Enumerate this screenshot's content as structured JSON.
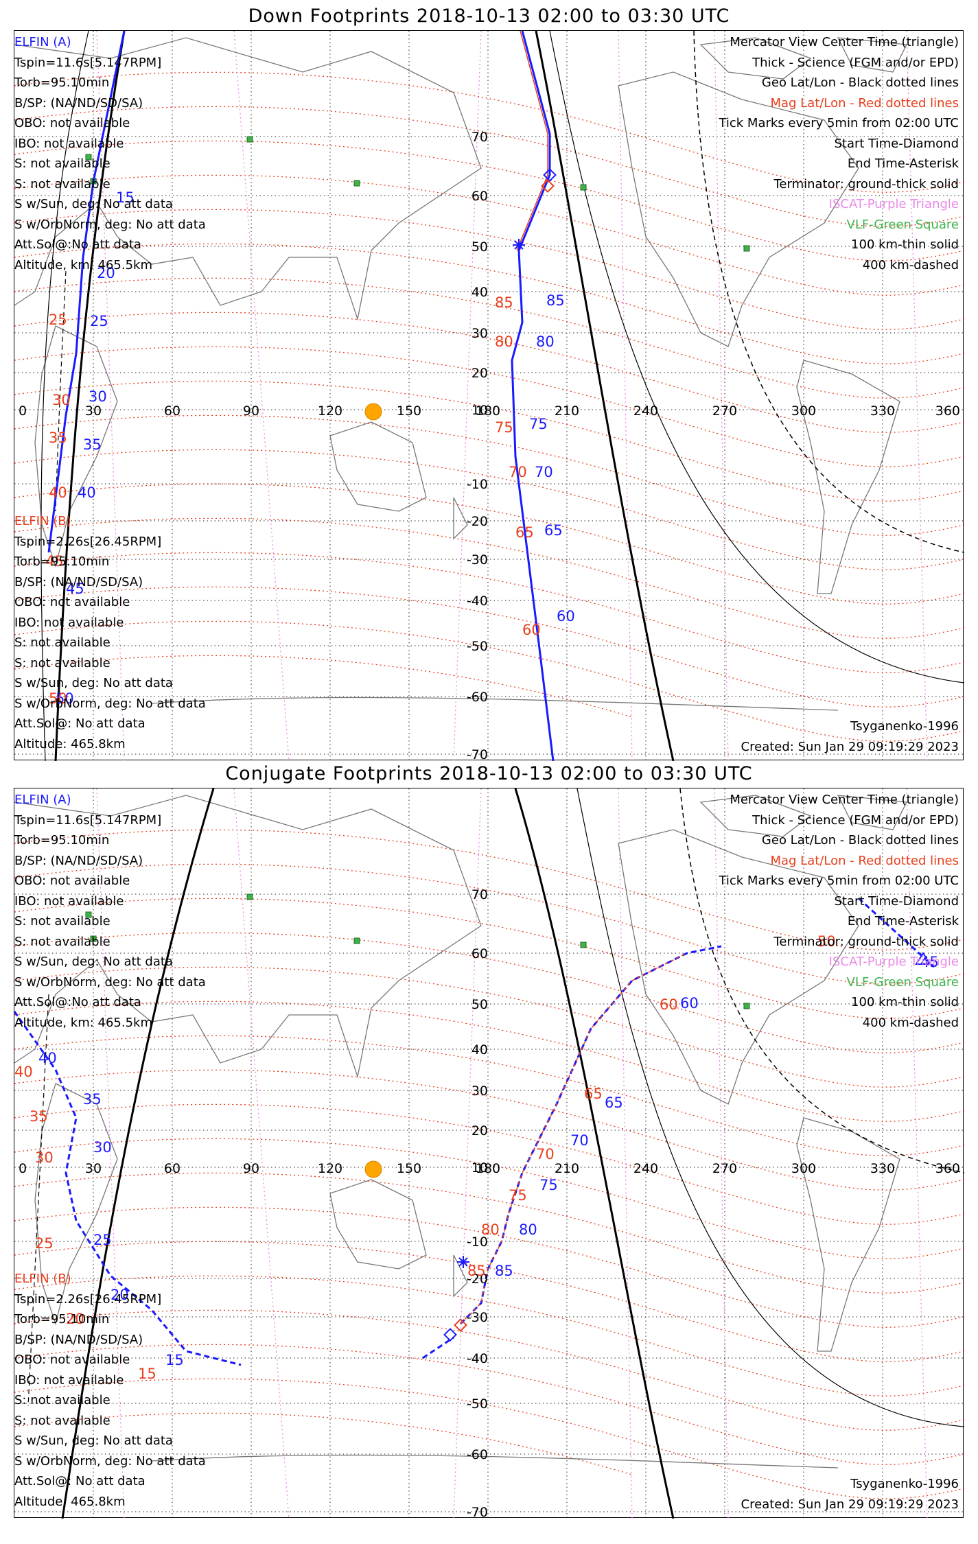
{
  "colors": {
    "science": "#1a1aff",
    "mag": "#e83e1c",
    "geo": "#000000",
    "iscat": "#e88ae8",
    "vlf": "#3fb24a",
    "sun": "#ffa500"
  },
  "panels": [
    {
      "title": "Down Footprints 2018-10-13 02:00 to 03:30 UTC",
      "elfin_a": {
        "header": "ELFIN (A)",
        "lines": [
          "Tspin=11.6s[5.147RPM]",
          "Torb=95.10min",
          "B/SP: (NA/ND/SD/SA)",
          "OBO: not available",
          "IBO: not available",
          "S: not available",
          "S: not available",
          "S w/Sun, deg: No att data",
          "S w/OrbNorm, deg: No att data",
          "Att.Sol@:No att data",
          "Altitude, km: 465.5km"
        ]
      },
      "elfin_b": {
        "header": "ELFIN (B)",
        "lines": [
          "Tspin=2.26s[26.45RPM]",
          "Torb=95.10min",
          "B/SP: (NA/ND/SD/SA)",
          "OBO: not available",
          "IBO: not available",
          "S: not available",
          "S: not available",
          "S w/Sun, deg: No att data",
          "S w/OrbNorm, deg: No att data",
          "Att.Sol@: No att data",
          "Altitude: 465.8km"
        ]
      },
      "legend": [
        {
          "text": "Mercator View Center Time (triangle)",
          "color": "black"
        },
        {
          "text": "Thick - Science (FGM and/or EPD)",
          "color": "black"
        },
        {
          "text": "Geo Lat/Lon - Black dotted lines",
          "color": "black"
        },
        {
          "text": "Mag Lat/Lon - Red dotted lines",
          "color": "red"
        },
        {
          "text": "Tick Marks every 5min from 02:00 UTC",
          "color": "black"
        },
        {
          "text": "Start Time-Diamond",
          "color": "black"
        },
        {
          "text": "End Time-Asterisk",
          "color": "black"
        },
        {
          "text": "Terminator: ground-thick solid",
          "color": "black"
        },
        {
          "text": "ISCAT-Purple Triangle",
          "color": "pink"
        },
        {
          "text": "VLF-Green Square",
          "color": "green"
        },
        {
          "text": "100 km-thin solid",
          "color": "black"
        },
        {
          "text": "400 km-dashed",
          "color": "black"
        }
      ],
      "model": "Tsyganenko-1996",
      "created": "Created: Sun Jan 29 09:19:29 2023",
      "lon_ticks": [
        "0",
        "30",
        "60",
        "90",
        "120",
        "150",
        "180",
        "210",
        "240",
        "270",
        "300",
        "330",
        "360"
      ],
      "lat_ticks": [
        "70",
        "60",
        "50",
        "40",
        "30",
        "20",
        "10",
        "-10",
        "-20",
        "-30",
        "-40",
        "-50",
        "-60",
        "-70"
      ],
      "blue_labels": [
        "15",
        "20",
        "25",
        "30",
        "35",
        "40",
        "45",
        "50",
        "85",
        "80",
        "75",
        "70",
        "65",
        "60"
      ],
      "red_labels": [
        "25",
        "30",
        "35",
        "40",
        "45",
        "50",
        "85",
        "80",
        "75",
        "70",
        "65",
        "60"
      ]
    },
    {
      "title": "Conjugate Footprints 2018-10-13 02:00 to 03:30 UTC",
      "elfin_a": {
        "header": "ELFIN (A)",
        "lines": [
          "Tspin=11.6s[5.147RPM]",
          "Torb=95.10min",
          "B/SP: (NA/ND/SD/SA)",
          "OBO: not available",
          "IBO: not available",
          "S: not available",
          "S: not available",
          "S w/Sun, deg: No att data",
          "S w/OrbNorm, deg: No att data",
          "Att.Sol@:No att data",
          "Altitude, km: 465.5km"
        ]
      },
      "elfin_b": {
        "header": "ELFIN (B)",
        "lines": [
          "Tspin=2.26s[26.45RPM]",
          "Torb=95.10min",
          "B/SP: (NA/ND/SD/SA)",
          "OBO: not available",
          "IBO: not available",
          "S: not available",
          "S: not available",
          "S w/Sun, deg: No att data",
          "S w/OrbNorm, deg: No att data",
          "Att.Sol@: No att data",
          "Altitude: 465.8km"
        ]
      },
      "legend": [
        {
          "text": "Mercator View Center Time (triangle)",
          "color": "black"
        },
        {
          "text": "Thick - Science (FGM and/or EPD)",
          "color": "black"
        },
        {
          "text": "Geo Lat/Lon - Black dotted lines",
          "color": "black"
        },
        {
          "text": "Mag Lat/Lon - Red dotted lines",
          "color": "red"
        },
        {
          "text": "Tick Marks every 5min from 02:00 UTC",
          "color": "black"
        },
        {
          "text": "Start Time-Diamond",
          "color": "black"
        },
        {
          "text": "End Time-Asterisk",
          "color": "black"
        },
        {
          "text": "Terminator: ground-thick solid",
          "color": "black"
        },
        {
          "text": "ISCAT-Purple Triangle",
          "color": "pink"
        },
        {
          "text": "VLF-Green Square",
          "color": "green"
        },
        {
          "text": "100 km-thin solid",
          "color": "black"
        },
        {
          "text": "400 km-dashed",
          "color": "black"
        }
      ],
      "model": "Tsyganenko-1996",
      "created": "Created: Sun Jan 29 09:19:29 2023",
      "lon_ticks": [
        "0",
        "30",
        "60",
        "90",
        "120",
        "150",
        "180",
        "210",
        "240",
        "270",
        "300",
        "330",
        "360"
      ],
      "lat_ticks": [
        "70",
        "60",
        "50",
        "40",
        "30",
        "20",
        "10",
        "-10",
        "-20",
        "-30",
        "-40",
        "-50",
        "-60",
        "-70"
      ],
      "blue_labels": [
        "40",
        "35",
        "30",
        "25",
        "20",
        "15",
        "85",
        "80",
        "75",
        "70",
        "65",
        "60",
        "45"
      ],
      "red_labels": [
        "40",
        "35",
        "30",
        "25",
        "20",
        "15",
        "85",
        "80",
        "75",
        "70",
        "65",
        "60",
        "50"
      ]
    }
  ]
}
